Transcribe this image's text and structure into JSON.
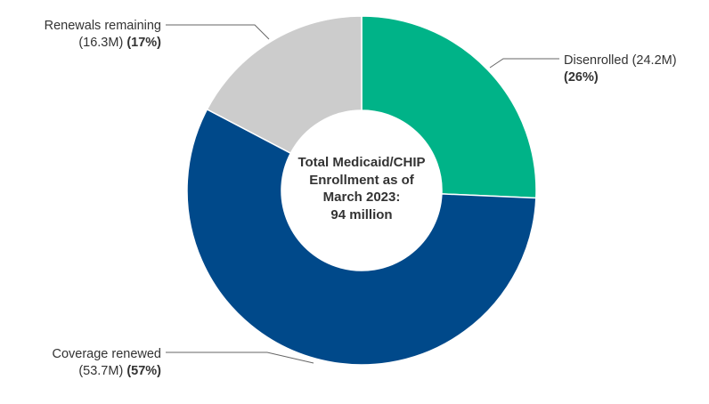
{
  "chart_data": {
    "type": "pie",
    "donut": true,
    "center_text": [
      "Total Medicaid/CHIP",
      "Enrollment as of",
      "March 2023:",
      "94 million"
    ],
    "slices": [
      {
        "name": "Disenrolled",
        "value": 24.2,
        "value_text": "(24.2M)",
        "pct": 26,
        "pct_text": "(26%)",
        "color": "#00b388"
      },
      {
        "name": "Coverage renewed",
        "value": 53.7,
        "value_text": "(53.7M)",
        "pct": 57,
        "pct_text": "(57%)",
        "color": "#00498a"
      },
      {
        "name": "Renewals remaining",
        "value": 16.3,
        "value_text": "(16.3M)",
        "pct": 17,
        "pct_text": "(17%)",
        "color": "#cccccc"
      }
    ],
    "start_angle": "12 o'clock",
    "direction": "clockwise"
  }
}
